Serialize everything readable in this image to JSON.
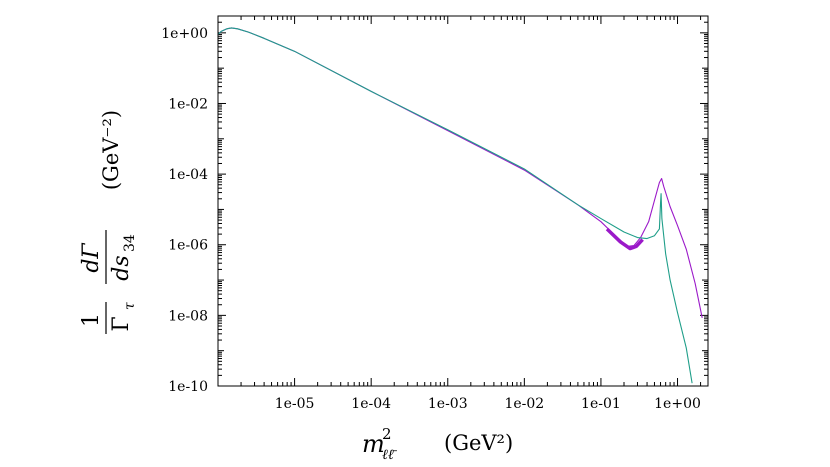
{
  "chart_data": {
    "type": "line",
    "x_scale": "log",
    "y_scale": "log",
    "xlim": [
      1e-06,
      2.5
    ],
    "ylim": [
      1e-10,
      3
    ],
    "x_ticks": [
      {
        "value": 1e-05,
        "label": "1e-05"
      },
      {
        "value": 0.0001,
        "label": "1e-04"
      },
      {
        "value": 0.001,
        "label": "1e-03"
      },
      {
        "value": 0.01,
        "label": "1e-02"
      },
      {
        "value": 0.1,
        "label": "1e-01"
      },
      {
        "value": 1,
        "label": "1e+00"
      }
    ],
    "y_ticks": [
      {
        "value": 1,
        "label": "1e+00"
      },
      {
        "value": 0.01,
        "label": "1e-02"
      },
      {
        "value": 0.0001,
        "label": "1e-04"
      },
      {
        "value": 1e-06,
        "label": "1e-06"
      },
      {
        "value": 1e-08,
        "label": "1e-08"
      },
      {
        "value": 1e-10,
        "label": "1e-10"
      }
    ],
    "xlabel": {
      "m": "m",
      "sup": "2",
      "sub": "ℓℓ̄",
      "unit": "(GeV²)"
    },
    "ylabel": {
      "num1": "1",
      "den1": "Γ",
      "den1_sub": "τ",
      "num2": "dΓ",
      "den2": "ds",
      "den2_sub": "34",
      "unit": "(GeV⁻²)"
    },
    "series": [
      {
        "name": "purple",
        "color": "#9b19c9",
        "points": [
          [
            1e-06,
            0.9
          ],
          [
            1.1e-06,
            1.1
          ],
          [
            1.3e-06,
            1.3
          ],
          [
            1.5e-06,
            1.38
          ],
          [
            1.8e-06,
            1.3
          ],
          [
            2.5e-06,
            1.05
          ],
          [
            4e-06,
            0.7
          ],
          [
            1e-05,
            0.3
          ],
          [
            0.0001,
            0.022
          ],
          [
            0.001,
            0.0017
          ],
          [
            0.01,
            0.00013
          ],
          [
            0.05,
            1.35e-05
          ],
          [
            0.1,
            4.5e-06
          ],
          [
            0.15,
            1.9e-06
          ],
          [
            0.22,
            9e-07
          ],
          [
            0.27,
            9.5e-07
          ],
          [
            0.33,
            1.6e-06
          ],
          [
            0.42,
            4.5e-06
          ],
          [
            0.5,
            1.8e-05
          ],
          [
            0.58,
            5.8e-05
          ],
          [
            0.62,
            7.5e-05
          ],
          [
            0.66,
            4.5e-05
          ],
          [
            0.8,
            1.2e-05
          ],
          [
            1.0,
            3.5e-06
          ],
          [
            1.3,
            7.5e-07
          ],
          [
            1.7,
            8e-08
          ],
          [
            2.1,
            8.5e-09
          ]
        ]
      },
      {
        "name": "purple-band",
        "color": "#9b19c9",
        "points": [
          [
            0.12,
            2.8e-06
          ],
          [
            0.18,
            1.2e-06
          ],
          [
            0.24,
            7.8e-07
          ],
          [
            0.29,
            9e-07
          ],
          [
            0.35,
            1.4e-06
          ]
        ]
      },
      {
        "name": "teal",
        "color": "#1f9e89",
        "points": [
          [
            1e-06,
            0.9
          ],
          [
            1.1e-06,
            1.1
          ],
          [
            1.3e-06,
            1.3
          ],
          [
            1.5e-06,
            1.38
          ],
          [
            1.8e-06,
            1.3
          ],
          [
            2.5e-06,
            1.05
          ],
          [
            4e-06,
            0.7
          ],
          [
            1e-05,
            0.3
          ],
          [
            0.0001,
            0.022
          ],
          [
            0.001,
            0.0018
          ],
          [
            0.01,
            0.00014
          ],
          [
            0.05,
            1.35e-05
          ],
          [
            0.1,
            5.5e-06
          ],
          [
            0.2,
            2.3e-06
          ],
          [
            0.3,
            1.6e-06
          ],
          [
            0.4,
            1.5e-06
          ],
          [
            0.5,
            1.8e-06
          ],
          [
            0.58,
            2.8e-06
          ],
          [
            0.6,
            1.5e-05
          ],
          [
            0.61,
            2.8e-05
          ],
          [
            0.625,
            5.5e-06
          ],
          [
            0.7,
            5.5e-07
          ],
          [
            0.8,
            1e-07
          ],
          [
            1.0,
            1.2e-08
          ],
          [
            1.3,
            1.2e-09
          ],
          [
            1.55,
            1.2e-10
          ]
        ]
      }
    ]
  }
}
